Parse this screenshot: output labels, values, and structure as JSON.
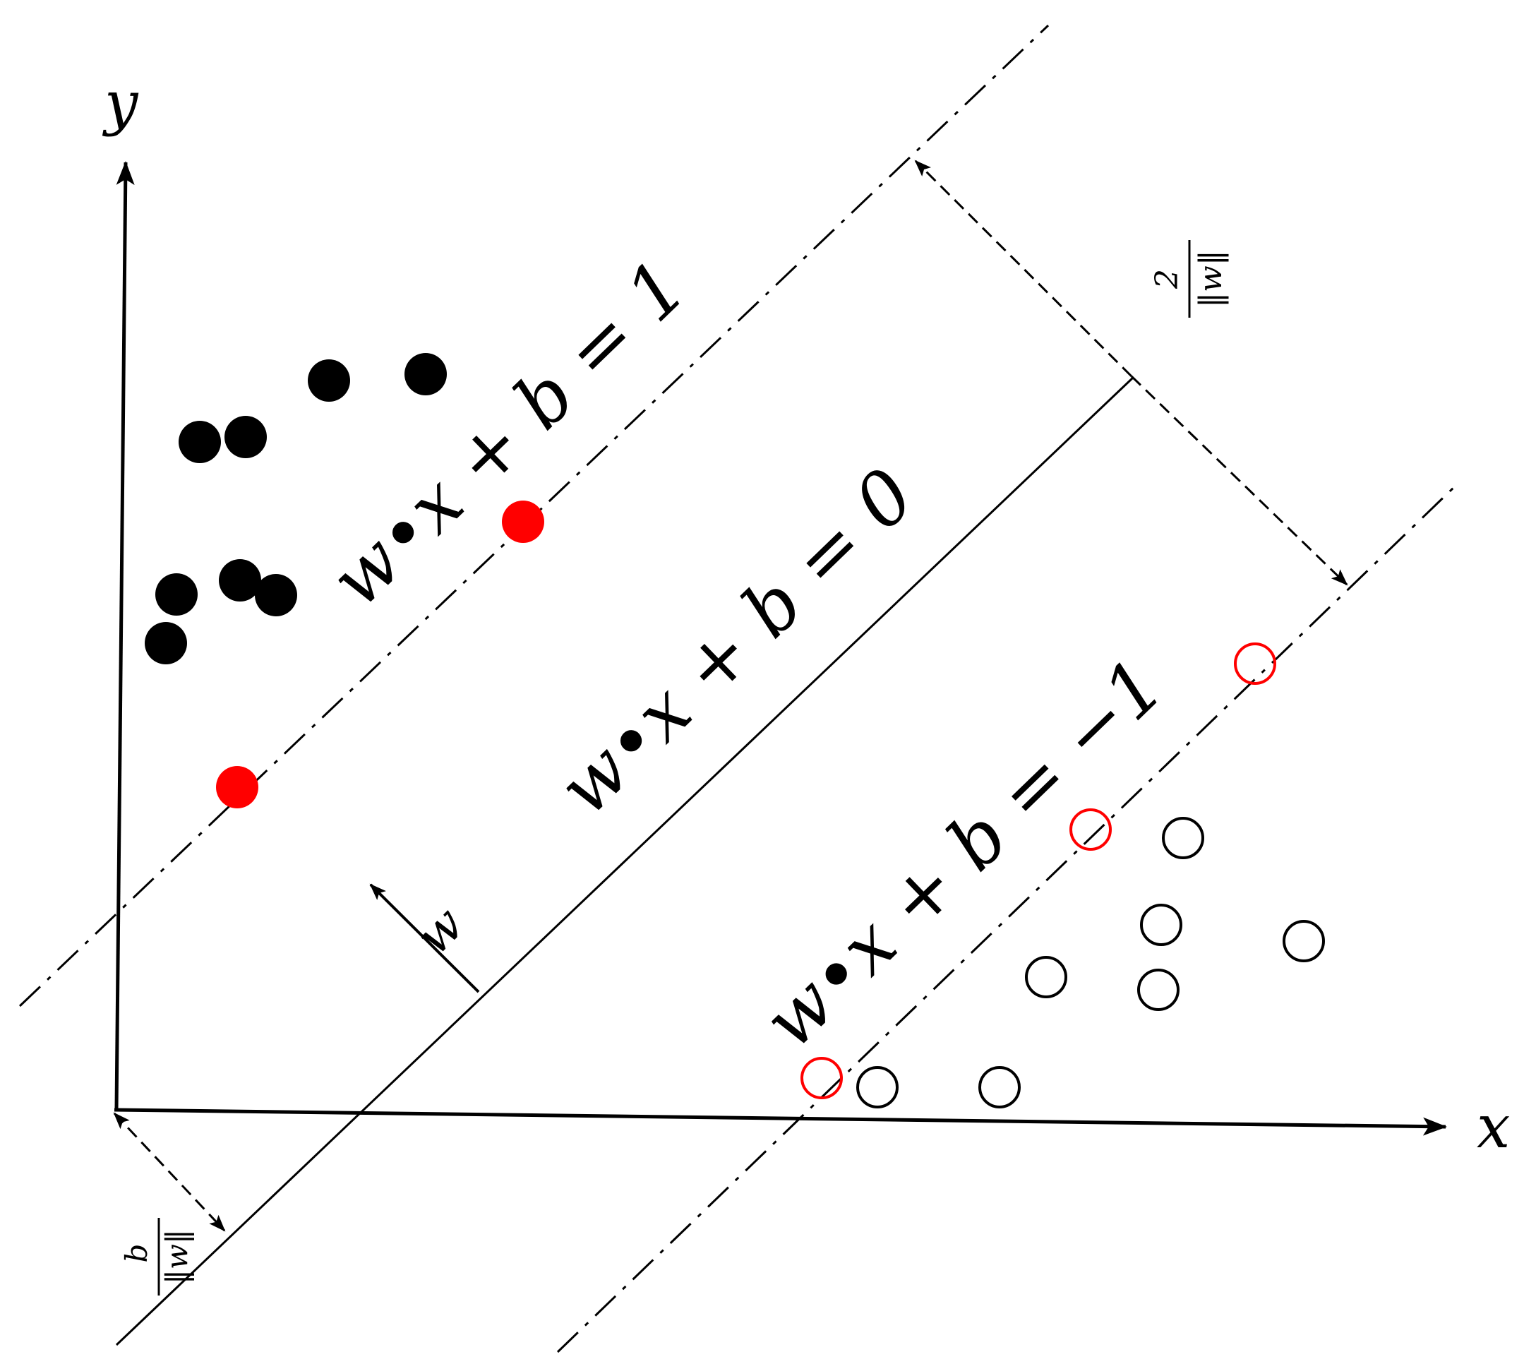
{
  "labels": {
    "axis_y": "y",
    "axis_x": "x",
    "positive_margin": "w•x + b = 1",
    "hyperplane": "w•x + b = 0",
    "negative_margin": "w•x + b = −1",
    "normal_vector": "w",
    "margin_width_num": "2",
    "margin_width_den": "‖w‖",
    "offset_num": "b",
    "offset_den": "‖w‖"
  },
  "colors": {
    "ink": "#000000",
    "support_vector": "#ff0000",
    "background": "#ffffff"
  }
}
